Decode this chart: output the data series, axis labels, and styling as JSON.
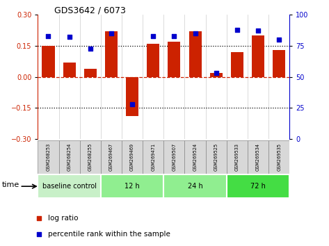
{
  "title": "GDS3642 / 6073",
  "samples": [
    "GSM268253",
    "GSM268254",
    "GSM268255",
    "GSM269467",
    "GSM269469",
    "GSM269471",
    "GSM269507",
    "GSM269524",
    "GSM269525",
    "GSM269533",
    "GSM269534",
    "GSM269535"
  ],
  "log_ratio": [
    0.15,
    0.07,
    0.04,
    0.22,
    -0.19,
    0.16,
    0.17,
    0.22,
    0.02,
    0.12,
    0.2,
    0.13
  ],
  "percentile_rank": [
    83,
    82,
    73,
    85,
    28,
    83,
    83,
    85,
    53,
    88,
    87,
    80
  ],
  "bar_color": "#cc2200",
  "dot_color": "#0000cc",
  "ylim_left": [
    -0.3,
    0.3
  ],
  "ylim_right": [
    0,
    100
  ],
  "yticks_left": [
    -0.3,
    -0.15,
    0.0,
    0.15,
    0.3
  ],
  "yticks_right": [
    0,
    25,
    50,
    75,
    100
  ],
  "hlines_dotted": [
    0.15,
    -0.15
  ],
  "hline_red_dashed": 0.0,
  "groups": [
    {
      "label": "baseline control",
      "start": 0,
      "end": 3,
      "color": "#c8f0c8"
    },
    {
      "label": "12 h",
      "start": 3,
      "end": 6,
      "color": "#90ee90"
    },
    {
      "label": "24 h",
      "start": 6,
      "end": 9,
      "color": "#90ee90"
    },
    {
      "label": "72 h",
      "start": 9,
      "end": 12,
      "color": "#44dd44"
    }
  ],
  "legend_log_ratio": "log ratio",
  "legend_percentile": "percentile rank within the sample",
  "time_label": "time",
  "axis_left_color": "#cc2200",
  "axis_right_color": "#0000cc",
  "bg_color": "#ffffff",
  "plot_bg": "#ffffff",
  "sample_box_color": "#d8d8d8",
  "sample_box_edge": "#888888"
}
